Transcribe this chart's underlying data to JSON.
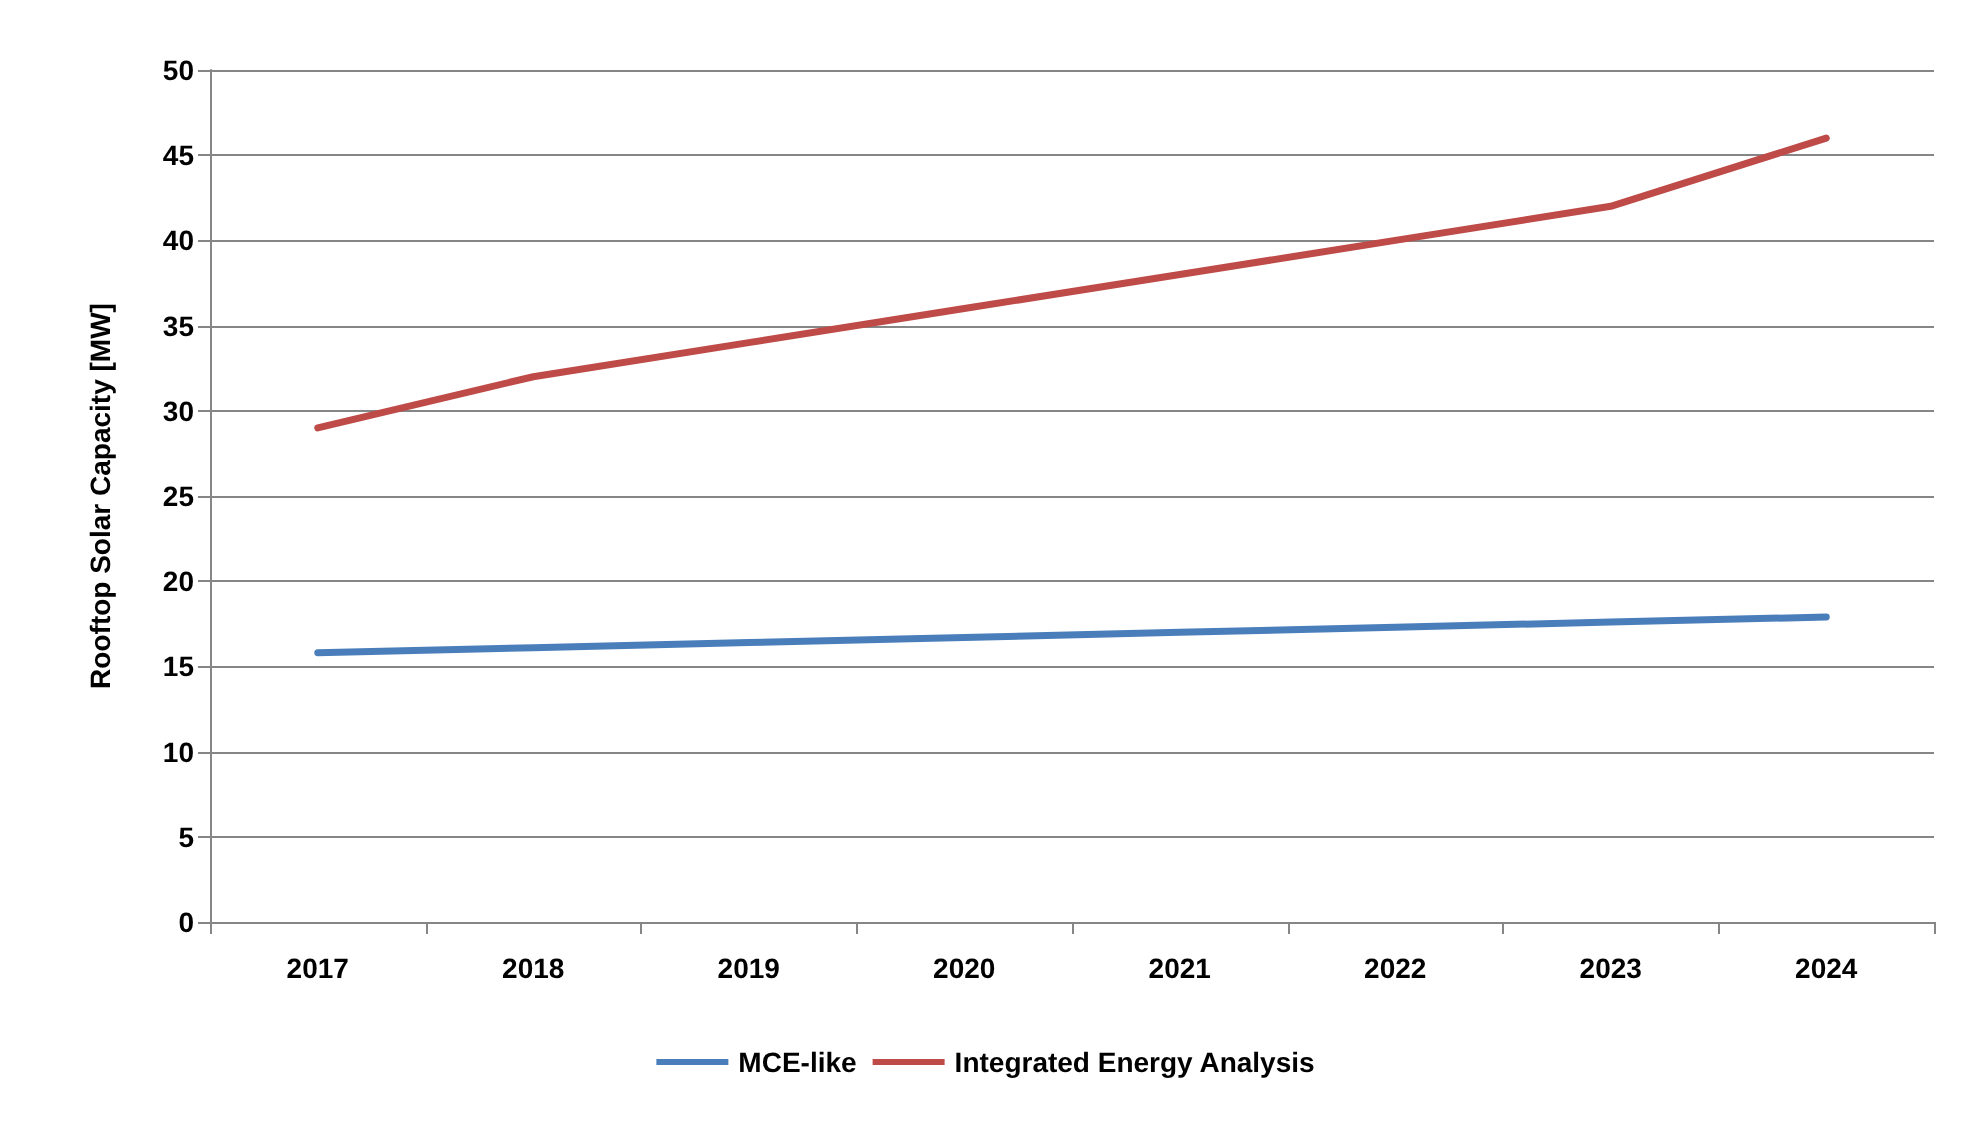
{
  "chart_data": {
    "type": "line",
    "ylabel": "Rooftop Solar Capacity [MW]",
    "categories": [
      "2017",
      "2018",
      "2019",
      "2020",
      "2021",
      "2022",
      "2023",
      "2024"
    ],
    "series": [
      {
        "name": "MCE-like",
        "color": "#4a7ebb",
        "values": [
          15.8,
          16.1,
          16.4,
          16.7,
          17.0,
          17.3,
          17.6,
          17.9
        ]
      },
      {
        "name": "Integrated Energy Analysis",
        "color": "#be4b48",
        "values": [
          29,
          32,
          34,
          36,
          38,
          40,
          42,
          46
        ]
      }
    ],
    "ylim": [
      0,
      50
    ],
    "yticks": [
      0,
      5,
      10,
      15,
      20,
      25,
      30,
      35,
      40,
      45,
      50
    ],
    "grid": "y",
    "legend": "bottom",
    "marker": "none",
    "line_style": "solid"
  }
}
